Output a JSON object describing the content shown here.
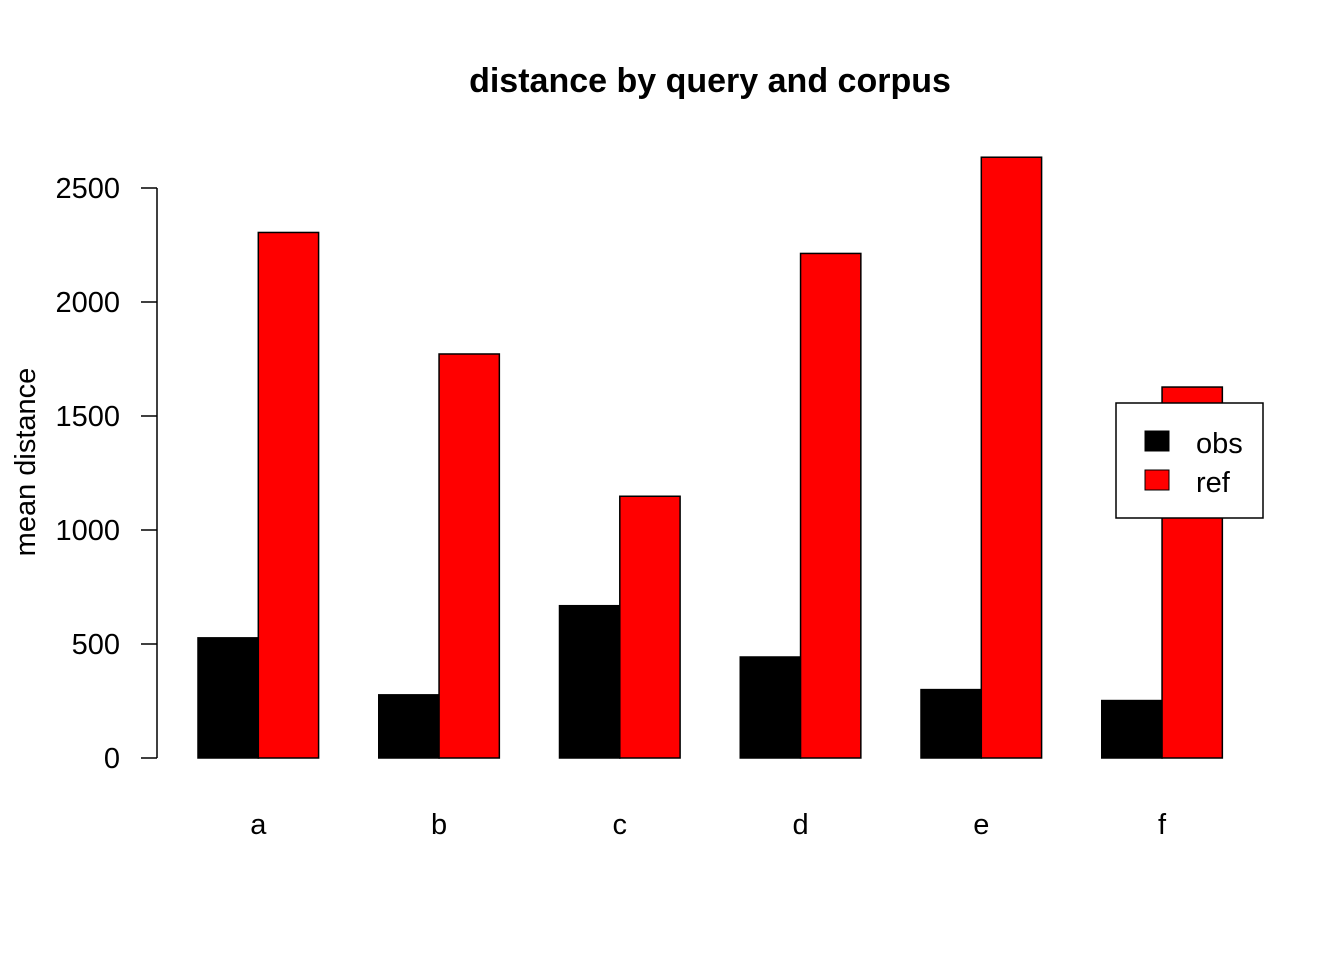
{
  "chart_data": {
    "type": "bar",
    "title": "distance by query and corpus",
    "xlabel": "",
    "ylabel": "mean distance",
    "categories": [
      "a",
      "b",
      "c",
      "d",
      "e",
      "f"
    ],
    "series": [
      {
        "name": "obs",
        "color": "#000000",
        "values": [
          527,
          277,
          668,
          443,
          300,
          252
        ]
      },
      {
        "name": "ref",
        "color": "#ff0000",
        "values": [
          2305,
          1772,
          1148,
          2213,
          2635,
          1627
        ]
      }
    ],
    "ylim": [
      0,
      2635
    ],
    "yticks": [
      "0",
      "500",
      "1000",
      "1500",
      "2000",
      "2500"
    ],
    "grid": false,
    "legend_position": "right",
    "legend": [
      {
        "label": "obs",
        "color": "#000000"
      },
      {
        "label": "ref",
        "color": "#ff0000"
      }
    ]
  }
}
